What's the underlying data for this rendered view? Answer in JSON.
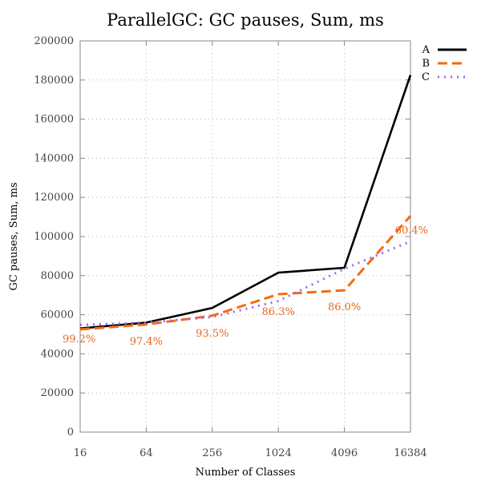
{
  "chart_data": {
    "type": "line",
    "title": "ParallelGC: GC pauses, Sum, ms",
    "xlabel": "Number of Classes",
    "ylabel": "GC pauses, Sum, ms",
    "x_scale": "log2",
    "categories": [
      "16",
      "64",
      "256",
      "1024",
      "4096",
      "16384"
    ],
    "x": [
      16,
      64,
      256,
      1024,
      4096,
      16384
    ],
    "ylim": [
      0,
      200000
    ],
    "yticks": [
      0,
      20000,
      40000,
      60000,
      80000,
      100000,
      120000,
      140000,
      160000,
      180000,
      200000
    ],
    "grid": true,
    "legend_position": "top-right",
    "series": [
      {
        "name": "A",
        "color": "#000000",
        "dash": "solid",
        "values": [
          53000,
          56000,
          63500,
          81500,
          84000,
          182500
        ]
      },
      {
        "name": "B",
        "color": "#f26b0f",
        "dash": "dashed",
        "values": [
          52500,
          55000,
          59500,
          70500,
          72500,
          110500
        ]
      },
      {
        "name": "C",
        "color": "#9b6cf0",
        "dash": "dotted",
        "values": [
          54800,
          56000,
          58800,
          67000,
          83500,
          97500
        ]
      }
    ],
    "annotations": [
      "99.2%",
      "97.4%",
      "93.5%",
      "86.3%",
      "86.0%",
      "60.4%"
    ]
  }
}
